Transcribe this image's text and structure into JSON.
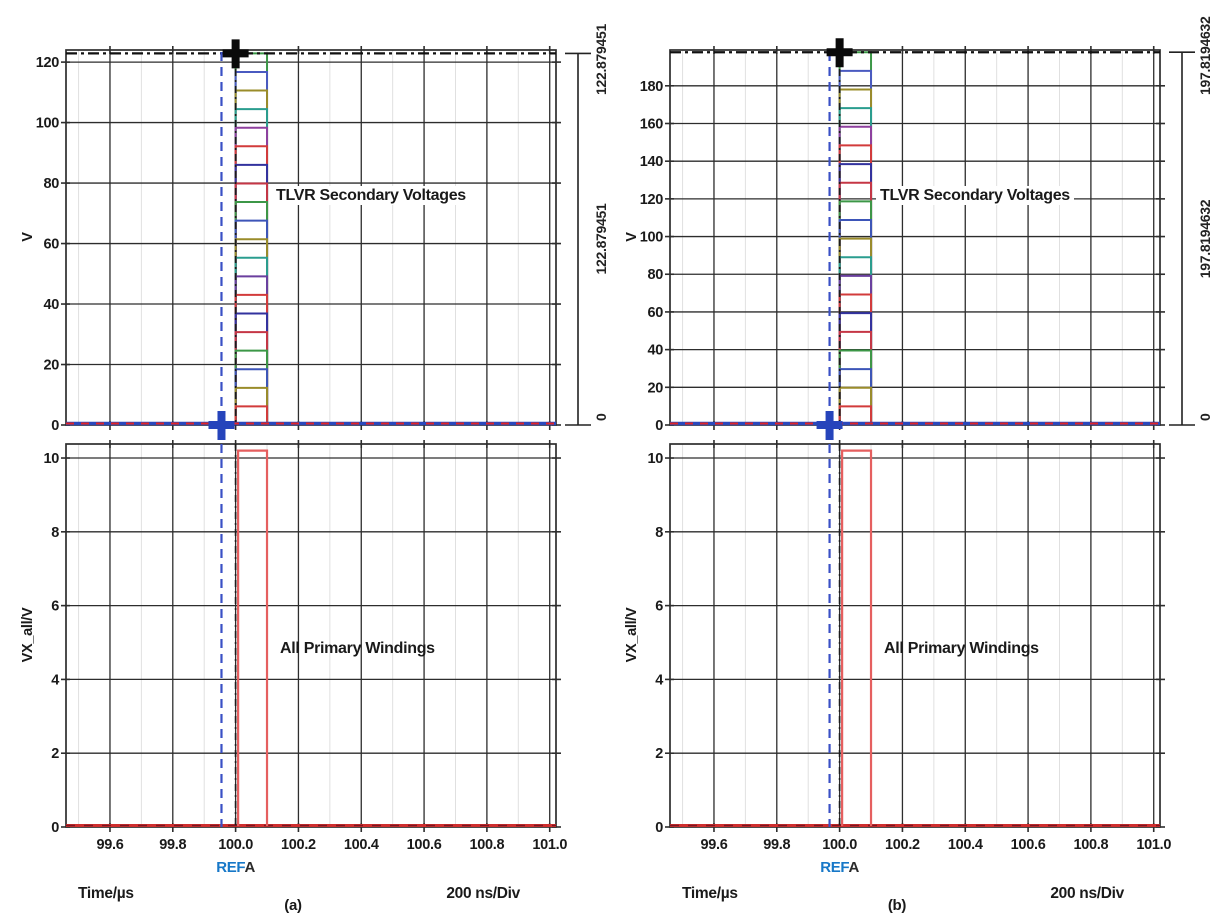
{
  "figure": {
    "background": "#ffffff",
    "shared": {
      "x_axis_label": "Time/µs",
      "x_div_label": "200 ns/Div",
      "ref_label_blue": "REF",
      "ref_label_dark": "A",
      "xtick_labels": [
        "99.6",
        "99.8",
        "100.0",
        "100.2",
        "100.4",
        "100.6",
        "100.8",
        "101.0"
      ],
      "xtick_values": [
        99.6,
        99.8,
        100.0,
        100.2,
        100.4,
        100.6,
        100.8,
        101.0
      ],
      "xlim": [
        99.46,
        101.02
      ],
      "minor_xticks": [
        99.5,
        99.7,
        99.9,
        100.1,
        100.3,
        100.5,
        100.7,
        100.9
      ]
    },
    "colors": {
      "grid": "#2d2d2d",
      "minor_grid": "#e0e0e0",
      "text_dark": "#1a1a1a",
      "blue_label": "#1778c8",
      "crimson_label": "#c0104e",
      "ref_dash_blue": "#3a50c5",
      "cursor_dark": "#1c1c1c",
      "cross_blue": "#2644bb",
      "cross_black": "#0a0a0a",
      "baseline_blue": "#2b48bb",
      "baseline_red_dash": "#e02525",
      "primary_baseline": "#cf2e2e",
      "primary_pulse": "#e55f5f",
      "peak_line": "#111111",
      "measure": "#222222"
    },
    "step_palette": [
      "#d23b3b",
      "#9a8c2a",
      "#3d55b8",
      "#3c9747",
      "#c53645",
      "#32329e",
      "#d23b3b",
      "#6a3f9e",
      "#2a9d8f",
      "#9a8c2a",
      "#3d55b8",
      "#3c9747",
      "#c53645",
      "#32329e",
      "#d23b3b",
      "#8e3f9e",
      "#2a9d8f",
      "#9a8c2a",
      "#4a5ac0",
      "#3c9747"
    ]
  },
  "chart_data": [
    {
      "id": "a",
      "caption": "(a)",
      "x_axis_label": "Time/µs",
      "x_div_label": "200 ns/Div",
      "panels": [
        {
          "type": "step",
          "label": "TLVR Secondary Voltages",
          "ylabel": "V",
          "ylim": [
            0,
            124
          ],
          "yticks": [
            0,
            20,
            40,
            60,
            80,
            100,
            120
          ],
          "grid": true,
          "num_windings": 20,
          "pulse_start_us": 100.0,
          "pulse_end_us": 100.1,
          "baseline_v": 0,
          "peak_v": 122.879451,
          "amplitudes_v": [
            6.14,
            12.29,
            18.43,
            24.58,
            30.72,
            36.86,
            43.01,
            49.15,
            55.3,
            61.44,
            67.58,
            73.73,
            79.87,
            86.02,
            92.16,
            98.3,
            104.45,
            110.59,
            116.74,
            122.88
          ],
          "ref_cursor_us": 99.955,
          "a_cursor_us": 100.0,
          "measurement_labels": {
            "top": "122.879451",
            "mid": "122.879451",
            "bottom": "0"
          }
        },
        {
          "type": "step",
          "label": "All Primary Windings",
          "ylabel": "VX_all/V",
          "ylim": [
            0,
            10.38
          ],
          "yticks": [
            0,
            2,
            4,
            6,
            8,
            10
          ],
          "grid": true,
          "pulse_start_us": 100.0,
          "pulse_end_us": 100.1,
          "baseline_v": 0,
          "amplitude_v": 10.2,
          "ref_cursor_us": 99.955,
          "a_cursor_us": 100.0
        }
      ]
    },
    {
      "id": "b",
      "caption": "(b)",
      "x_axis_label": "Time/µs",
      "x_div_label": "200 ns/Div",
      "panels": [
        {
          "type": "step",
          "label": "TLVR Secondary Voltages",
          "ylabel": "V",
          "ylim": [
            0,
            199
          ],
          "yticks": [
            0,
            20,
            40,
            60,
            80,
            100,
            120,
            140,
            160,
            180
          ],
          "grid": true,
          "num_windings": 20,
          "pulse_start_us": 100.0,
          "pulse_end_us": 100.1,
          "baseline_v": 0,
          "peak_v": 197.8194632,
          "amplitudes_v": [
            9.89,
            19.78,
            29.67,
            39.56,
            49.45,
            59.35,
            69.24,
            79.13,
            89.02,
            98.91,
            108.8,
            118.69,
            128.58,
            138.47,
            148.36,
            158.26,
            168.15,
            178.04,
            187.93,
            197.82
          ],
          "ref_cursor_us": 99.968,
          "a_cursor_us": 100.0,
          "measurement_labels": {
            "top": "197.8194632",
            "mid": "197.8194632",
            "bottom": "0"
          }
        },
        {
          "type": "step",
          "label": "All Primary Windings",
          "ylabel": "VX_all/V",
          "ylim": [
            0,
            10.38
          ],
          "yticks": [
            0,
            2,
            4,
            6,
            8,
            10
          ],
          "grid": true,
          "pulse_start_us": 100.0,
          "pulse_end_us": 100.1,
          "baseline_v": 0,
          "amplitude_v": 10.2,
          "ref_cursor_us": 99.968,
          "a_cursor_us": 100.0
        }
      ]
    }
  ]
}
